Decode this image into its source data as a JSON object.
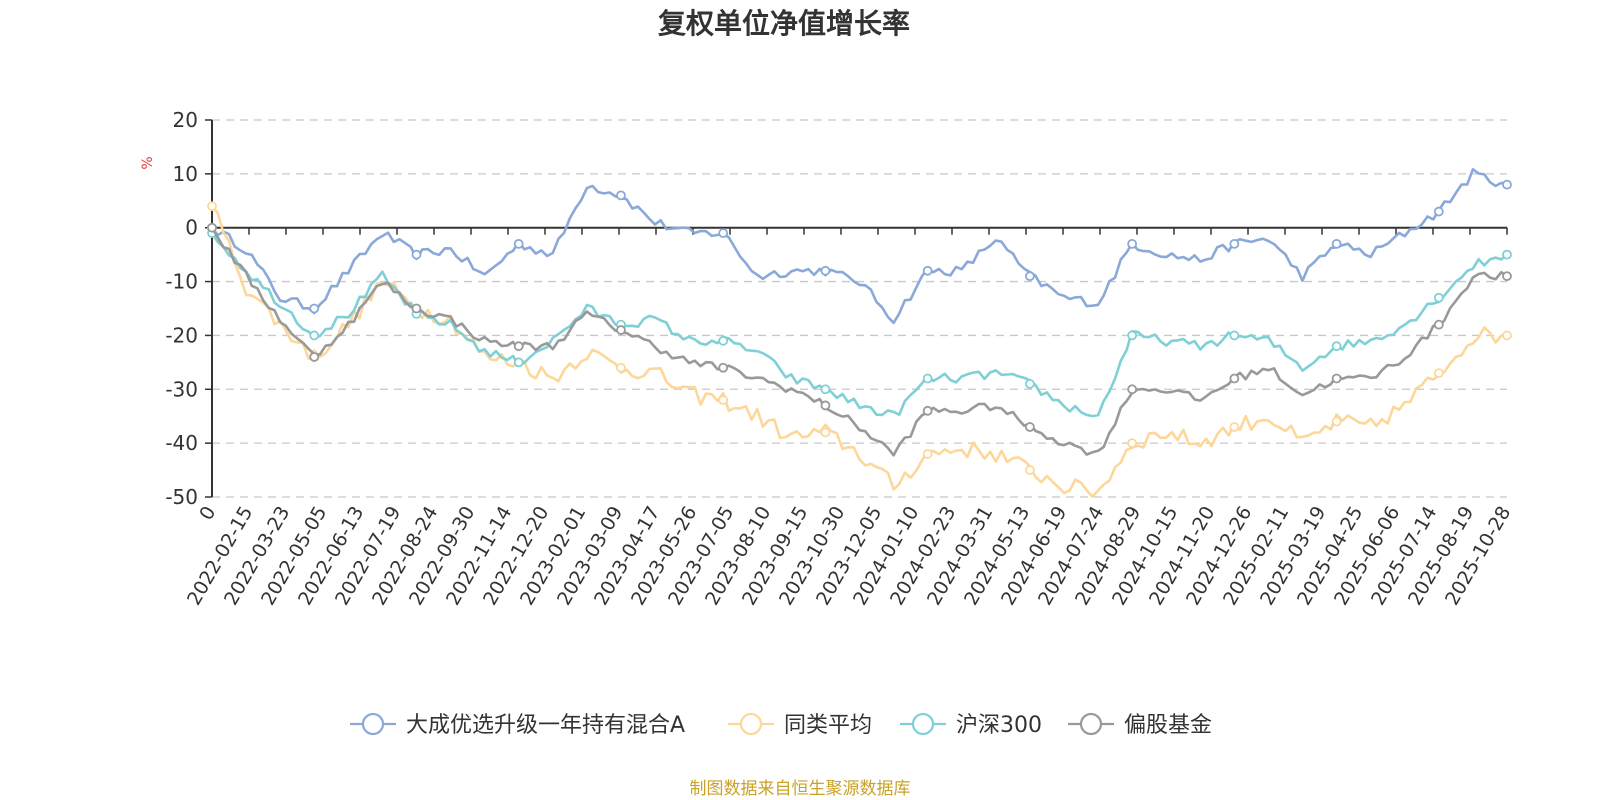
{
  "chart_data": {
    "type": "line",
    "title": "复权单位净值增长率",
    "ylabel": "%",
    "ylim": [
      -50,
      20
    ],
    "yticks": [
      20,
      10,
      0,
      -10,
      -20,
      -30,
      -40,
      -50
    ],
    "x_tick_labels": [
      "0",
      "2022-02-15",
      "2022-03-23",
      "2022-05-05",
      "2022-06-13",
      "2022-07-19",
      "2022-08-24",
      "2022-09-30",
      "2022-11-14",
      "2022-12-20",
      "2023-02-01",
      "2023-03-09",
      "2023-04-17",
      "2023-05-26",
      "2023-07-05",
      "2023-08-10",
      "2023-09-15",
      "2023-10-30",
      "2023-12-05",
      "2024-01-10",
      "2024-02-23",
      "2024-03-31",
      "2024-05-13",
      "2024-06-19",
      "2024-07-24",
      "2024-08-29",
      "2024-10-15",
      "2024-11-20",
      "2024-12-26",
      "2025-02-11",
      "2025-03-19",
      "2025-04-25",
      "2025-06-06",
      "2025-07-14",
      "2025-08-19",
      "2025-10-28"
    ],
    "legend_position": "bottom-center",
    "series": [
      {
        "name": "大成优选升级一年持有混合A",
        "color": "#8aa9d8",
        "values": [
          0,
          -4,
          -13,
          -15,
          -8,
          -1,
          -5,
          -4,
          -9,
          -3,
          -5,
          8,
          6,
          1,
          -1,
          -1,
          -9,
          -8,
          -8,
          -10,
          -17,
          -8,
          -8,
          -2,
          -9,
          -13,
          -14,
          -3,
          -5,
          -6,
          -3,
          -2,
          -9,
          -3,
          -5,
          -1,
          3,
          10,
          8
        ]
      },
      {
        "name": "同类平均",
        "color": "#fdd79a",
        "values": [
          4,
          -11,
          -18,
          -24,
          -18,
          -10,
          -15,
          -17,
          -24,
          -25,
          -28,
          -23,
          -26,
          -27,
          -31,
          -32,
          -35,
          -39,
          -38,
          -42,
          -48,
          -42,
          -41,
          -42,
          -45,
          -48,
          -49,
          -40,
          -38,
          -40,
          -37,
          -35,
          -40,
          -36,
          -37,
          -33,
          -27,
          -20,
          -20
        ]
      },
      {
        "name": "沪深300",
        "color": "#7fd0d6",
        "values": [
          -1,
          -8,
          -14,
          -20,
          -16,
          -9,
          -16,
          -18,
          -23,
          -25,
          -21,
          -15,
          -18,
          -17,
          -21,
          -21,
          -23,
          -28,
          -30,
          -33,
          -35,
          -28,
          -28,
          -27,
          -29,
          -33,
          -35,
          -20,
          -21,
          -22,
          -20,
          -21,
          -26,
          -22,
          -21,
          -18,
          -13,
          -7,
          -5
        ]
      },
      {
        "name": "偏股基金",
        "color": "#999999",
        "values": [
          0,
          -9,
          -17,
          -24,
          -18,
          -10,
          -15,
          -17,
          -21,
          -22,
          -22,
          -16,
          -19,
          -22,
          -25,
          -26,
          -28,
          -30,
          -33,
          -37,
          -42,
          -34,
          -34,
          -33,
          -37,
          -40,
          -42,
          -30,
          -30,
          -32,
          -28,
          -26,
          -31,
          -28,
          -28,
          -24,
          -18,
          -9,
          -9
        ]
      }
    ],
    "source": "制图数据来自恒生聚源数据库"
  }
}
